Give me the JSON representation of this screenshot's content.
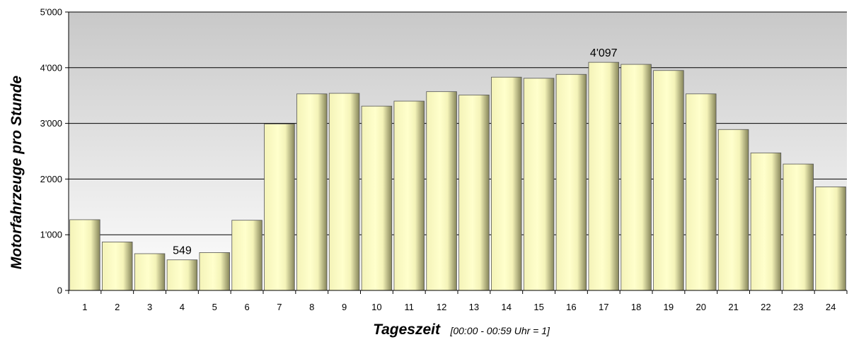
{
  "chart_data": {
    "type": "bar",
    "categories": [
      "1",
      "2",
      "3",
      "4",
      "5",
      "6",
      "7",
      "8",
      "9",
      "10",
      "11",
      "12",
      "13",
      "14",
      "15",
      "16",
      "17",
      "18",
      "19",
      "20",
      "21",
      "22",
      "23",
      "24"
    ],
    "values": [
      1270,
      870,
      660,
      549,
      680,
      1260,
      2990,
      3530,
      3540,
      3310,
      3400,
      3570,
      3510,
      3830,
      3810,
      3880,
      4097,
      4060,
      3950,
      3530,
      2890,
      2470,
      2270,
      1860
    ],
    "data_labels": [
      {
        "category": "4",
        "text": "549"
      },
      {
        "category": "17",
        "text": "4'097"
      }
    ],
    "ylim": [
      0,
      5000
    ],
    "yticks": [
      0,
      1000,
      2000,
      3000,
      4000,
      5000
    ],
    "ytick_labels": [
      "0",
      "1'000",
      "2'000",
      "3'000",
      "4'000",
      "5'000"
    ],
    "ylabel": "Motorfahrzeuge pro Stunde",
    "xlabel": "Tageszeit",
    "xlabel_note": "[00:00 - 00:59 Uhr = 1]",
    "grid": true,
    "legend": "none",
    "colors": {
      "bar_light": "#ffffcc",
      "bar_mid": "#f4f3b8",
      "bar_dark": "#86855a",
      "bar_edge": "#555555",
      "plot_bg_top": "#c8c8c8",
      "plot_bg_bottom": "#ffffff",
      "gridline": "#000000"
    }
  }
}
